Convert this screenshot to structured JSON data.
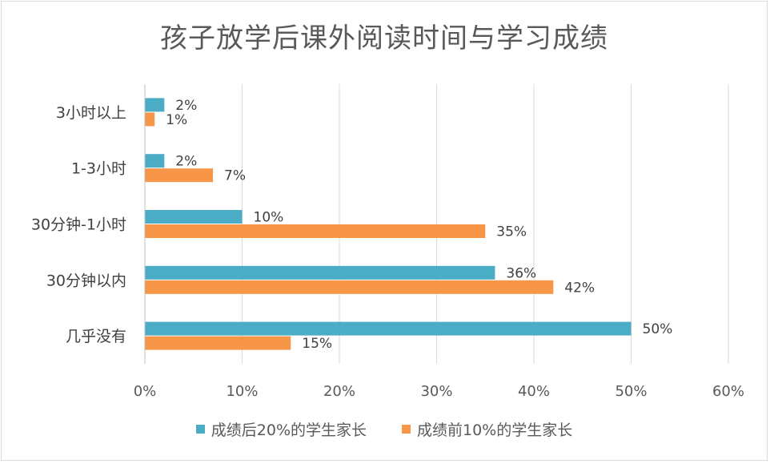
{
  "chart_data": {
    "type": "bar",
    "orientation": "horizontal",
    "title": "孩子放学后课外阅读时间与学习成绩",
    "categories": [
      "3小时以上",
      "1-3小时",
      "30分钟-1小时",
      "30分钟以内",
      "几乎没有"
    ],
    "series": [
      {
        "name": "成绩后20%的学生家长",
        "color": "#4BACC6",
        "values": [
          2,
          2,
          10,
          36,
          50
        ],
        "labels": [
          "2%",
          "2%",
          "10%",
          "36%",
          "50%"
        ]
      },
      {
        "name": "成绩前10%的学生家长",
        "color": "#F79646",
        "values": [
          1,
          7,
          35,
          42,
          15
        ],
        "labels": [
          "1%",
          "7%",
          "35%",
          "42%",
          "15%"
        ]
      }
    ],
    "xlim": [
      0,
      60
    ],
    "x_ticks": [
      "0%",
      "10%",
      "20%",
      "30%",
      "40%",
      "50%",
      "60%"
    ],
    "grid": true,
    "legend_position": "bottom"
  }
}
